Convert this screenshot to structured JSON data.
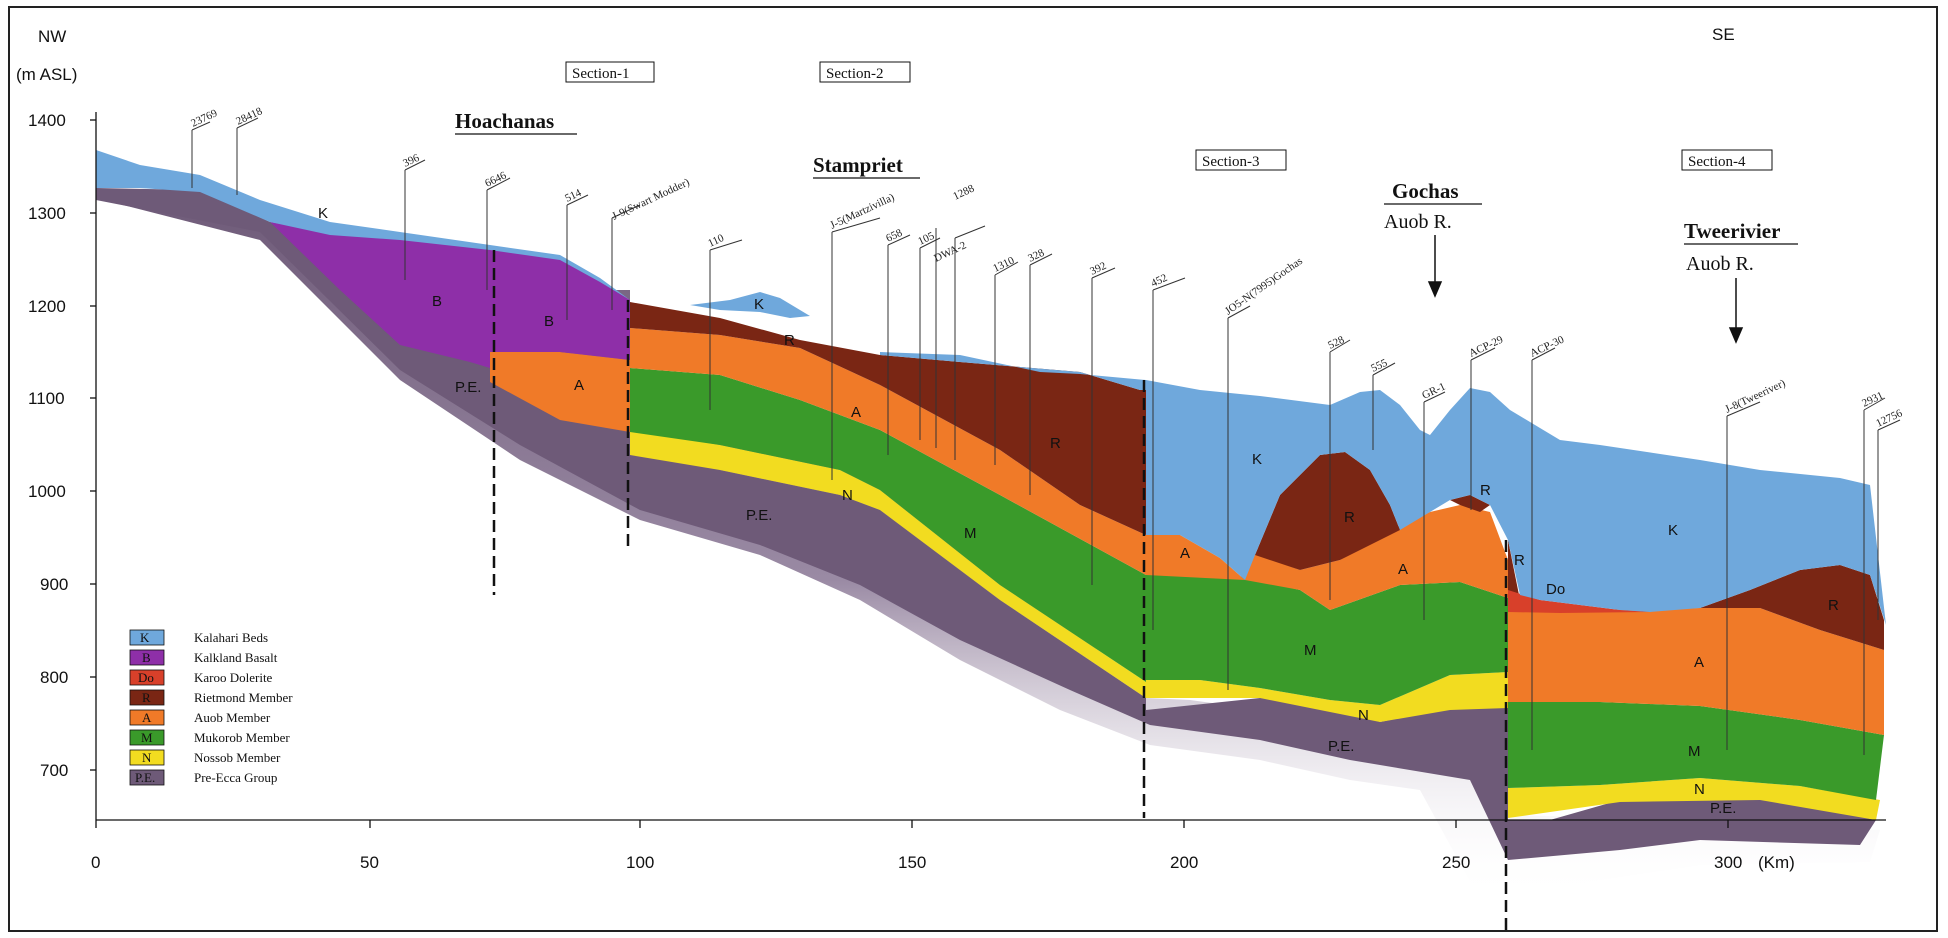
{
  "orientation": {
    "left": "NW",
    "right": "SE"
  },
  "y_axis": {
    "unit": "(m  ASL)",
    "ticks": [
      "1400",
      "1300",
      "1200",
      "1100",
      "1000",
      "900",
      "800",
      "700"
    ]
  },
  "x_axis": {
    "ticks": [
      "0",
      "50",
      "100",
      "150",
      "200",
      "250",
      "300"
    ],
    "unit": "(Km)"
  },
  "sections": [
    "Section-1",
    "Section-2",
    "Section-3",
    "Section-4"
  ],
  "places": {
    "hoachanas": "Hoachanas",
    "stampriet": "Stampriet",
    "gochas": "Gochas",
    "gochas_river": "Auob  R.",
    "tweerivier": "Tweerivier",
    "tweerivier_river": "Auob  R."
  },
  "wells": [
    "23769",
    "28418",
    "396",
    "6646",
    "514",
    "J-9(Swart Modder)",
    "110",
    "J-5(Martzivilla)",
    "658",
    "105",
    "1288",
    "DWA-2",
    "1310",
    "328",
    "392",
    "452",
    "JO5-N(7995)Gochas",
    "528",
    "555",
    "GR-1",
    "ACP-29",
    "ACP-30",
    "J-8(Tweeriver)",
    "2931",
    "12756"
  ],
  "layer_labels": {
    "K": "K",
    "B": "B",
    "Do": "Do",
    "R": "R",
    "A": "A",
    "M": "M",
    "N": "N",
    "PE": "P.E."
  },
  "legend": [
    {
      "code": "K",
      "label": "Kalahari  Beds",
      "color": "#6fa8dc"
    },
    {
      "code": "B",
      "label": "Kalkland Basalt",
      "color": "#8e2fa8"
    },
    {
      "code": "Do",
      "label": "Karoo Dolerite",
      "color": "#d8402a"
    },
    {
      "code": "R",
      "label": "Rietmond Member",
      "color": "#7a2614"
    },
    {
      "code": "A",
      "label": "Auob Member",
      "color": "#f07a28"
    },
    {
      "code": "M",
      "label": "Mukorob Member",
      "color": "#3a9a2a"
    },
    {
      "code": "N",
      "label": "Nossob Member",
      "color": "#f2dc20"
    },
    {
      "code": "P.E.",
      "label": "Pre-Ecca Group",
      "color": "#6e5a78"
    }
  ],
  "colors": {
    "kalahari": "#6fa8dc",
    "basalt": "#8e2fa8",
    "dolerite": "#d8402a",
    "rietmond": "#7a2614",
    "auob": "#f07a28",
    "mukorob": "#3a9a2a",
    "nossob": "#f2dc20",
    "pre_ecca": "#6e5a78"
  }
}
